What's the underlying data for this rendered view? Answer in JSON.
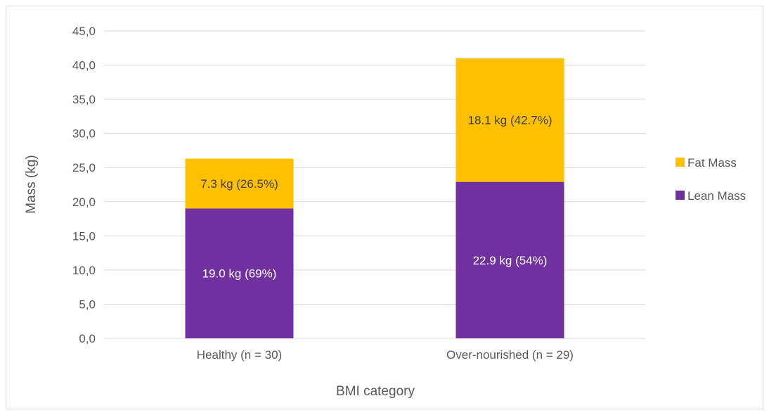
{
  "chart_data": {
    "type": "bar",
    "stacked": true,
    "categories": [
      "Healthy (n = 30)",
      "Over-nourished (n = 29)"
    ],
    "series": [
      {
        "name": "Lean Mass",
        "values": [
          19.0,
          22.9
        ],
        "labels": [
          "19.0 kg (69%)",
          "22.9 kg (54%)"
        ],
        "color": "#7030a0"
      },
      {
        "name": "Fat Mass",
        "values": [
          7.3,
          18.1
        ],
        "labels": [
          "7.3 kg (26.5%)",
          "18.1 kg (42.7%)"
        ],
        "color": "#ffc000"
      }
    ],
    "xlabel": "BMI category",
    "ylabel": "Mass (kg)",
    "ylim": [
      0,
      45
    ],
    "yticks": [
      "0,0",
      "5,0",
      "10,0",
      "15,0",
      "20,0",
      "25,0",
      "30,0",
      "35,0",
      "40,0",
      "45,0"
    ],
    "ytick_values": [
      0,
      5,
      10,
      15,
      20,
      25,
      30,
      35,
      40,
      45
    ],
    "grid": true,
    "legend_position": "right",
    "legend_order": [
      "Fat Mass",
      "Lean Mass"
    ]
  },
  "colors": {
    "grid": "#d9d9d9",
    "text": "#595959",
    "label_on_lean": "#ffffff",
    "label_on_fat": "#404040"
  }
}
